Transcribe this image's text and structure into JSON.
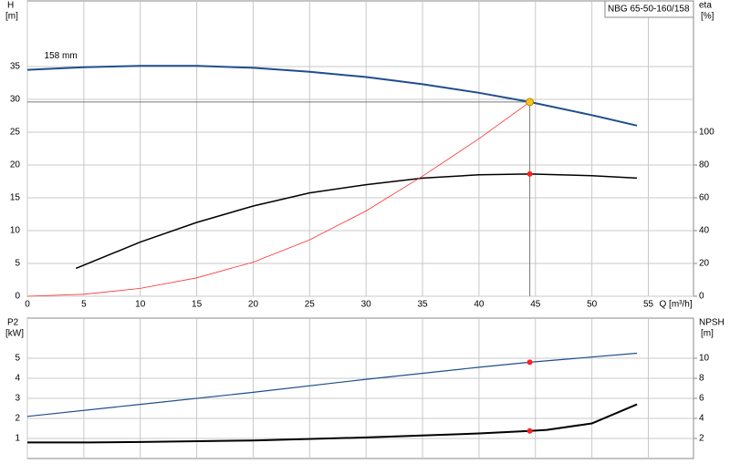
{
  "chart_data": [
    {
      "type": "line",
      "model": "NBG 65-50-160/158",
      "annotation": "158 mm",
      "ylabel": "H",
      "yunit": "[m]",
      "y2label": "eta",
      "y2unit": "[%]",
      "xlabel": "Q [m³/h]",
      "xlim": [
        0,
        59
      ],
      "xticks": [
        0,
        5,
        10,
        15,
        20,
        25,
        30,
        35,
        40,
        45,
        50,
        55
      ],
      "ylim": [
        0,
        45
      ],
      "yticks": [
        0,
        5,
        10,
        15,
        20,
        25,
        30,
        35
      ],
      "y2lim": [
        0,
        180
      ],
      "y2ticks": [
        0,
        20,
        40,
        60,
        80,
        100
      ],
      "grid": true,
      "series": [
        {
          "name": "H",
          "color": "#1f4e8c",
          "axis": "y",
          "x": [
            0,
            5,
            10,
            15,
            20,
            25,
            30,
            35,
            40,
            44.5,
            50,
            54
          ],
          "values": [
            34.5,
            34.9,
            35.1,
            35.1,
            34.8,
            34.2,
            33.4,
            32.3,
            31.0,
            29.6,
            27.6,
            26.0
          ]
        },
        {
          "name": "eta",
          "color": "#000000",
          "axis": "y2",
          "x": [
            4.3,
            10,
            15,
            20,
            25,
            30,
            35,
            40,
            44.5,
            50,
            54
          ],
          "values": [
            17,
            33,
            45,
            55,
            63,
            68,
            72,
            74,
            74.5,
            73.5,
            72
          ]
        },
        {
          "name": "system",
          "color": "#ff3030",
          "axis": "y",
          "x": [
            0,
            5,
            10,
            15,
            20,
            25,
            30,
            35,
            40,
            44.5
          ],
          "values": [
            0,
            0.3,
            1.2,
            2.8,
            5.2,
            8.6,
            13,
            18.3,
            24,
            29.6
          ]
        }
      ],
      "markers": [
        {
          "x": 44.5,
          "y": 29.6,
          "axis": "y",
          "color": "#f5c518"
        },
        {
          "x": 44.5,
          "y": 74.5,
          "axis": "y2",
          "color": "#ff2020"
        }
      ]
    },
    {
      "type": "line",
      "ylabel": "P2",
      "yunit": "[kW]",
      "y2label": "NPSH",
      "y2unit": "[m]",
      "xlim": [
        0,
        59
      ],
      "xticks": [
        0,
        5,
        10,
        15,
        20,
        25,
        30,
        35,
        40,
        45,
        50,
        55
      ],
      "ylim": [
        0,
        7
      ],
      "yticks": [
        1,
        2,
        3,
        4,
        5
      ],
      "y2lim": [
        0,
        14
      ],
      "y2ticks": [
        2,
        4,
        6,
        8,
        10
      ],
      "grid": true,
      "series": [
        {
          "name": "P2",
          "color": "#1f4e8c",
          "axis": "y",
          "x": [
            0,
            10,
            20,
            30,
            40,
            44.5,
            54
          ],
          "values": [
            2.1,
            2.7,
            3.3,
            3.95,
            4.55,
            4.8,
            5.25
          ]
        },
        {
          "name": "NPSH",
          "color": "#000000",
          "axis": "y2",
          "x": [
            0,
            5.5,
            10,
            20,
            30,
            40,
            44.5,
            46,
            50,
            54
          ],
          "values": [
            1.6,
            1.6,
            1.65,
            1.8,
            2.1,
            2.5,
            2.75,
            2.85,
            3.5,
            5.4
          ]
        }
      ],
      "markers": [
        {
          "x": 44.5,
          "y": 4.8,
          "axis": "y",
          "color": "#ff2020"
        },
        {
          "x": 44.5,
          "y": 2.75,
          "axis": "y2",
          "color": "#ff2020"
        }
      ]
    }
  ]
}
